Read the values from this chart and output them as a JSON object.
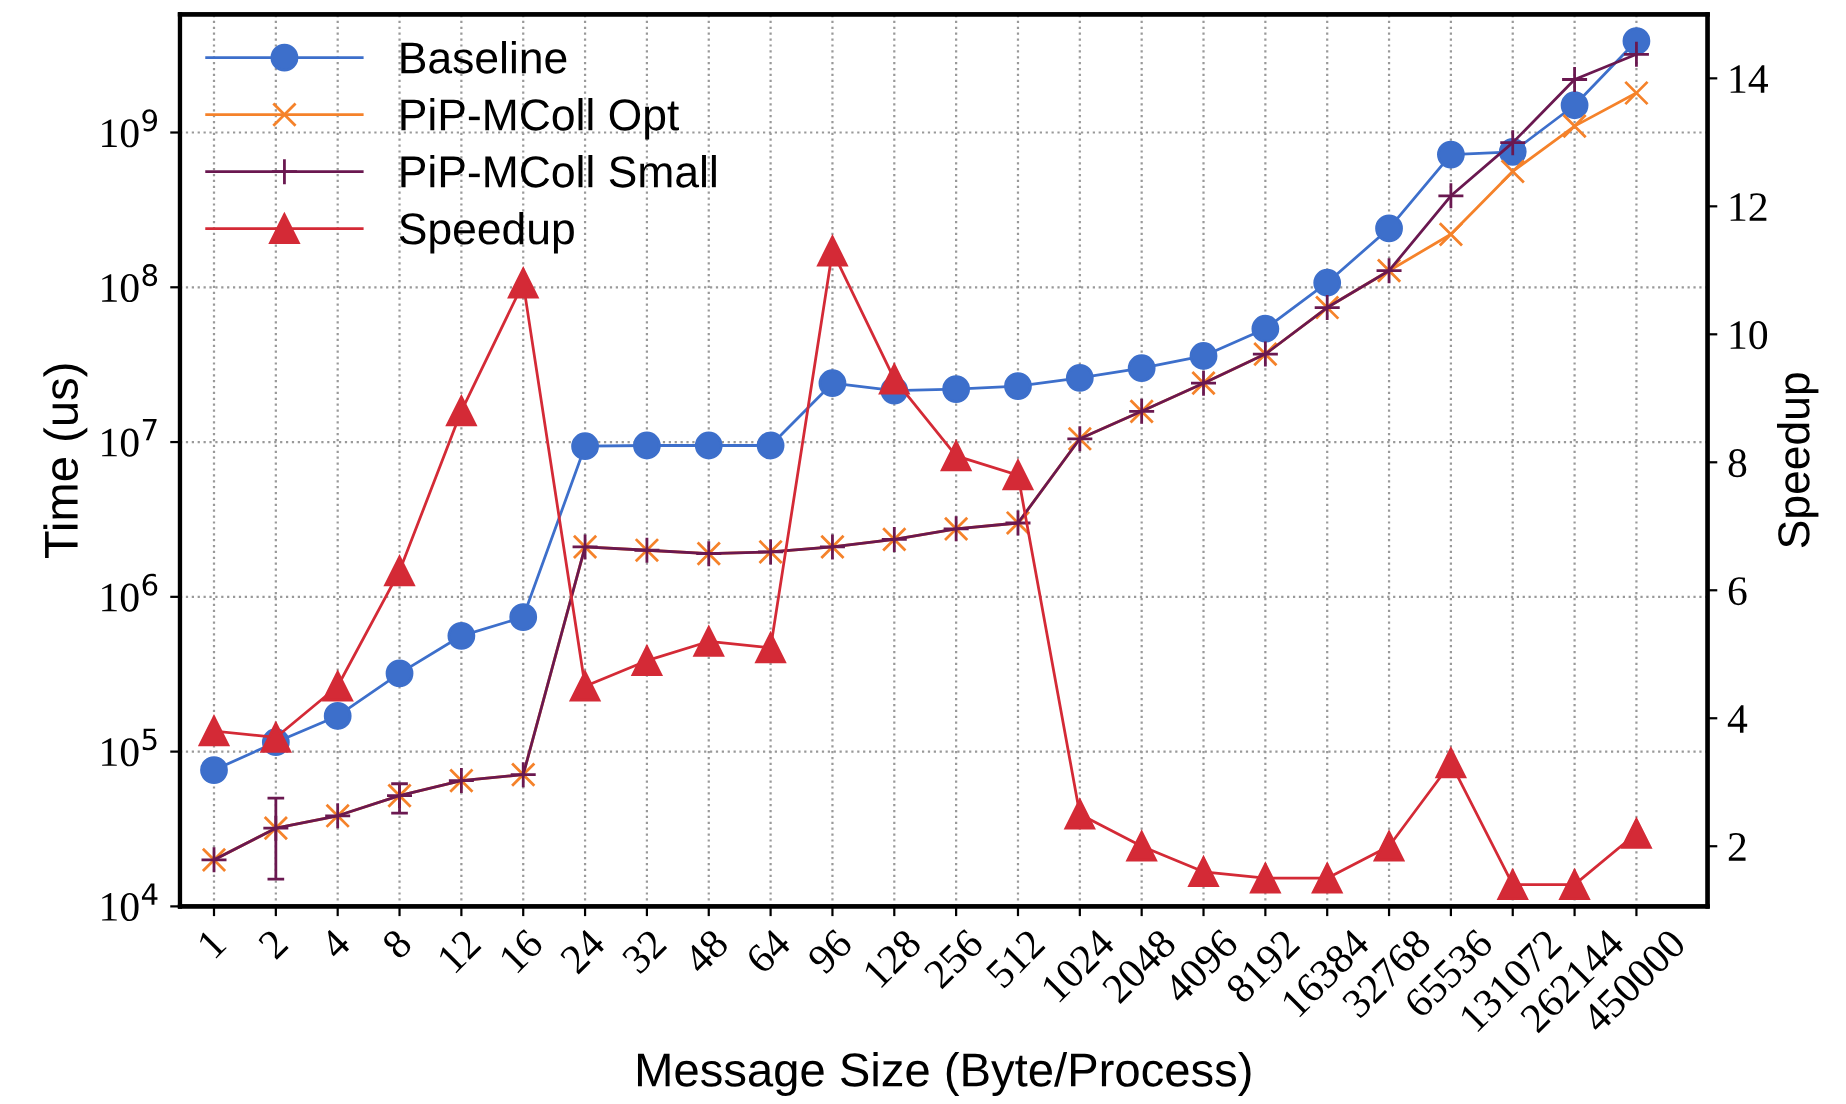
{
  "chart_data": {
    "type": "line",
    "xlabel": "Message Size (Byte/Process)",
    "ylabel": "Time (us)",
    "y2label": "Speedup",
    "categories": [
      "1",
      "2",
      "4",
      "8",
      "12",
      "16",
      "24",
      "32",
      "48",
      "64",
      "96",
      "128",
      "256",
      "512",
      "1024",
      "2048",
      "4096",
      "8192",
      "16384",
      "32768",
      "65536",
      "131072",
      "262144",
      "450000"
    ],
    "series": [
      {
        "name": "Baseline",
        "color": "#3d6fcb",
        "marker": "circle",
        "values": [
          76000,
          115000,
          170000,
          320000,
          560000,
          740000,
          9400000,
          9500000,
          9500000,
          9500000,
          24000000,
          21500000,
          22000000,
          23000000,
          26000000,
          30000000,
          36000000,
          54000000,
          107000000,
          240000000,
          720000000,
          750000000,
          1500000000,
          3900000000
        ]
      },
      {
        "name": "PiP-MColl Opt",
        "color": "#f5822a",
        "marker": "cross",
        "values": [
          20000,
          32000,
          38500,
          52000,
          65000,
          71000,
          2100000,
          2000000,
          1900000,
          1950000,
          2100000,
          2350000,
          2750000,
          3000000,
          10500000,
          15800000,
          24000000,
          37000000,
          74000000,
          128000000,
          220000000,
          560000000,
          1100000000,
          1800000000
        ]
      },
      {
        "name": "PiP-MColl Small",
        "color": "#6a1850",
        "marker": "plus",
        "values": [
          20000,
          32000,
          38500,
          52000,
          65000,
          71000,
          2100000,
          2000000,
          1900000,
          1950000,
          2100000,
          2350000,
          2750000,
          3000000,
          10500000,
          15800000,
          24000000,
          37000000,
          74000000,
          128000000,
          390000000,
          860000000,
          2200000000,
          3200000000
        ],
        "errors": [
          null,
          [
            15000,
            50000
          ],
          null,
          [
            40000,
            62000
          ],
          null,
          null,
          null,
          null,
          null,
          null,
          null,
          null,
          null,
          null,
          null,
          null,
          null,
          null,
          null,
          null,
          null,
          null,
          null,
          null
        ]
      },
      {
        "name": "Speedup",
        "color": "#d42a36",
        "marker": "triangle",
        "axis": "y2",
        "values": [
          3.8,
          3.7,
          4.5,
          6.3,
          8.8,
          10.8,
          4.5,
          4.9,
          5.2,
          5.1,
          11.3,
          9.3,
          8.1,
          7.8,
          2.5,
          2.0,
          1.6,
          1.5,
          1.5,
          2.0,
          3.3,
          1.4,
          1.4,
          2.2
        ]
      }
    ],
    "log": "y",
    "ylim": [
      10000,
      5800000000
    ],
    "yticks": [
      {
        "value": 10000,
        "label": "10$^{4}$"
      },
      {
        "value": 100000,
        "label": "10$^{5}$"
      },
      {
        "value": 1000000,
        "label": "10$^{6}$"
      },
      {
        "value": 10000000,
        "label": "10$^{7}$"
      },
      {
        "value": 100000000,
        "label": "10$^{8}$"
      },
      {
        "value": 1000000000,
        "label": "10$^{9}$"
      }
    ],
    "y2lim": [
      1.06,
      15.0
    ],
    "y2ticks": [
      2,
      4,
      6,
      8,
      10,
      12,
      14
    ],
    "grid": true,
    "legend": "top left",
    "line_style": "solid"
  }
}
